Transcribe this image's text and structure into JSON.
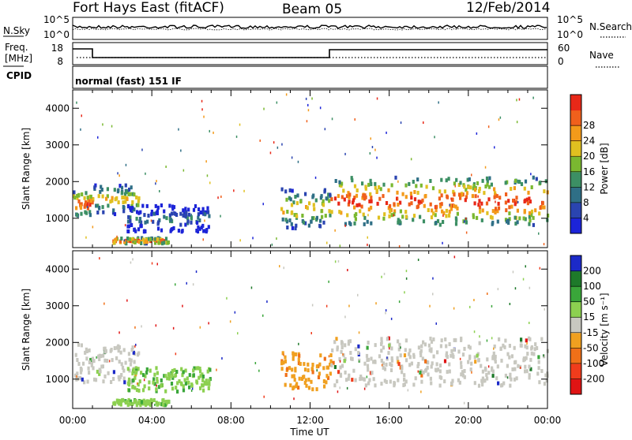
{
  "header": {
    "station": "Fort Hays East (fitACF)",
    "beam": "Beam 05",
    "date": "12/Feb/2014"
  },
  "sky_panel": {
    "left_label": "N.Sky",
    "right_label": "N.Search",
    "ticks": [
      "10^5",
      "10^0"
    ],
    "right_ticks": [
      "10^5",
      "10^0"
    ]
  },
  "freq_panel": {
    "left_label_line1": "Freq.",
    "left_label_line2": "[MHz]",
    "cpid_label": "CPID",
    "right_label": "Nave",
    "left_ticks": [
      "18",
      "8"
    ],
    "right_ticks": [
      "60",
      "0"
    ],
    "cpid_text": "normal (fast) 151 IF"
  },
  "chart_data": [
    {
      "type": "heatmap",
      "title": "",
      "ylabel": "Slant Range [km]",
      "xlabel": "Time UT",
      "x_ticks": [
        "00:00",
        "04:00",
        "08:00",
        "12:00",
        "16:00",
        "20:00",
        "00:00"
      ],
      "y_ticks": [
        "1000",
        "2000",
        "3000",
        "4000"
      ],
      "ylim": [
        200,
        4500
      ],
      "xlim_hours": [
        0,
        24
      ],
      "colorbar": {
        "label": "Power [dB]",
        "ticks": [
          "4",
          "8",
          "12",
          "16",
          "20",
          "24",
          "28"
        ],
        "colors": [
          "#1c24d8",
          "#2a44b0",
          "#2f6f86",
          "#3c8f64",
          "#7ab830",
          "#e0c020",
          "#f39a1a",
          "#f0601c",
          "#e82818"
        ]
      },
      "regions": [
        {
          "t0": 0.0,
          "t1": 1.0,
          "r0": 1050,
          "r1": 1700,
          "level": "strong"
        },
        {
          "t0": 1.0,
          "t1": 3.3,
          "r0": 1100,
          "r1": 1900,
          "level": "mid"
        },
        {
          "t0": 2.7,
          "t1": 6.9,
          "r0": 600,
          "r1": 1350,
          "level": "weak"
        },
        {
          "t0": 2.0,
          "t1": 4.8,
          "r0": 300,
          "r1": 450,
          "level": "strong"
        },
        {
          "t0": 10.5,
          "t1": 13.0,
          "r0": 700,
          "r1": 1800,
          "level": "mid"
        },
        {
          "t0": 13.0,
          "t1": 24.0,
          "r0": 800,
          "r1": 2100,
          "level": "strong"
        }
      ]
    },
    {
      "type": "heatmap",
      "title": "",
      "ylabel": "Slant Range [km]",
      "xlabel": "Time UT",
      "x_ticks": [
        "00:00",
        "04:00",
        "08:00",
        "12:00",
        "16:00",
        "20:00",
        "00:00"
      ],
      "y_ticks": [
        "1000",
        "2000",
        "3000",
        "4000"
      ],
      "ylim": [
        200,
        4500
      ],
      "xlim_hours": [
        0,
        24
      ],
      "colorbar": {
        "label": "Velocity [m s⁻¹]",
        "ticks": [
          "200",
          "100",
          "50",
          "15",
          "-15",
          "-50",
          "-100",
          "-200"
        ],
        "colors": [
          "#1c2ac8",
          "#1e7a2a",
          "#3aa63a",
          "#8cd050",
          "#c8c8c0",
          "#f0a020",
          "#f07018",
          "#f03c1c",
          "#e01414"
        ]
      },
      "regions": [
        {
          "t0": 0.0,
          "t1": 3.3,
          "r0": 900,
          "r1": 1950,
          "level": "ground"
        },
        {
          "t0": 2.7,
          "t1": 6.9,
          "r0": 650,
          "r1": 1300,
          "level": "positive"
        },
        {
          "t0": 2.0,
          "t1": 4.8,
          "r0": 280,
          "r1": 420,
          "level": "positive"
        },
        {
          "t0": 10.5,
          "t1": 13.0,
          "r0": 700,
          "r1": 1700,
          "level": "negative"
        },
        {
          "t0": 13.0,
          "t1": 24.0,
          "r0": 800,
          "r1": 2100,
          "level": "ground"
        }
      ]
    }
  ]
}
